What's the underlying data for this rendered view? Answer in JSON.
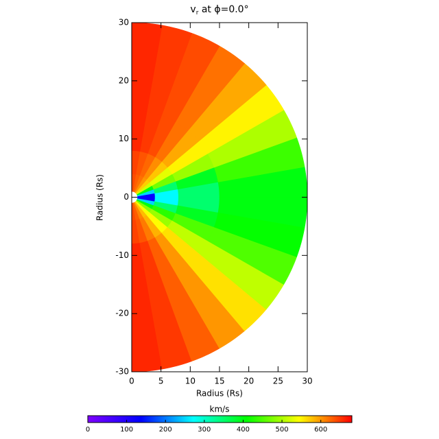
{
  "chart_data": {
    "type": "polar-heatmap",
    "title": "v",
    "title_sub": "r",
    "title_rest": " at ϕ=0.0°",
    "xlabel": "Radius (Rs)",
    "ylabel": "Radius (Rs)",
    "xlim": [
      0,
      30
    ],
    "xticks": [
      0,
      5,
      10,
      15,
      20,
      25,
      30
    ],
    "ylim": [
      -30,
      30
    ],
    "yticks": [
      -30,
      -20,
      -10,
      0,
      10,
      20,
      30
    ],
    "r_bins": [
      1,
      4,
      8,
      15,
      30
    ],
    "theta_bins": [
      -90,
      -80,
      -70,
      -60,
      -50,
      -40,
      -30,
      -20,
      -10,
      0,
      10,
      20,
      30,
      40,
      50,
      60,
      70,
      80,
      90
    ],
    "values": [
      [
        640,
        630,
        610,
        580,
        540,
        480,
        400,
        250,
        130,
        130,
        250,
        400,
        520,
        570,
        600,
        620,
        630,
        640
      ],
      [
        645,
        635,
        615,
        585,
        545,
        490,
        430,
        350,
        270,
        270,
        350,
        470,
        530,
        575,
        605,
        625,
        635,
        645
      ],
      [
        660,
        650,
        630,
        600,
        560,
        510,
        450,
        390,
        350,
        350,
        390,
        490,
        550,
        590,
        620,
        640,
        650,
        660
      ],
      [
        660,
        650,
        630,
        600,
        560,
        510,
        450,
        410,
        400,
        400,
        440,
        500,
        550,
        590,
        620,
        640,
        650,
        660
      ]
    ],
    "colormap": [
      "#7f00ff",
      "#0000ff",
      "#00ffff",
      "#00ff00",
      "#ffff00",
      "#ff0000"
    ],
    "colorbar_title": "km/s",
    "clim": [
      0,
      680
    ],
    "cticks": [
      0,
      100,
      200,
      300,
      400,
      500,
      600
    ]
  }
}
